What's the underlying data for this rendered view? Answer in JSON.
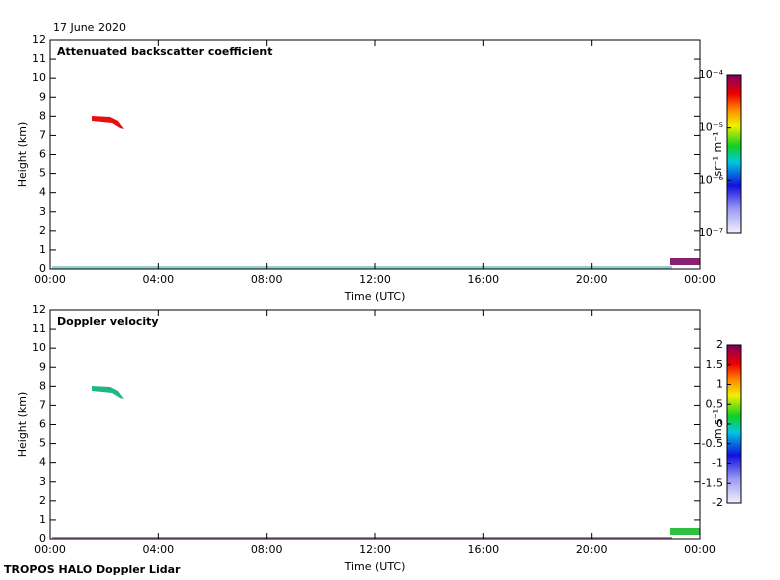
{
  "date": "17 June 2020",
  "footer": "TROPOS HALO Doppler Lidar",
  "chart_data": [
    {
      "type": "heatmap",
      "title": "Attenuated backscatter coefficient",
      "x_label": "Time (UTC)",
      "y_label": "Height (km)",
      "xlim": [
        0,
        24
      ],
      "xticks": [
        {
          "value": 0,
          "label": "00:00"
        },
        {
          "value": 4,
          "label": "04:00"
        },
        {
          "value": 8,
          "label": "08:00"
        },
        {
          "value": 12,
          "label": "12:00"
        },
        {
          "value": 16,
          "label": "16:00"
        },
        {
          "value": 20,
          "label": "20:00"
        },
        {
          "value": 24,
          "label": "00:00"
        }
      ],
      "ylim": [
        0,
        12
      ],
      "yticks": [
        0,
        1,
        2,
        3,
        4,
        5,
        6,
        7,
        8,
        9,
        10,
        11,
        12
      ],
      "colorbar_label": "sr⁻¹ m⁻¹",
      "colorbar_scale": "log",
      "colorbar_lim": [
        1e-07,
        0.0001
      ],
      "colorbar_ticks": [
        {
          "value": 1e-07,
          "label": "10⁻⁷"
        },
        {
          "value": 1e-06,
          "label": "10⁻⁶"
        },
        {
          "value": 1e-05,
          "label": "10⁻⁵"
        },
        {
          "value": 0.0001,
          "label": "10⁻⁴"
        }
      ]
    },
    {
      "type": "heatmap",
      "title": "Doppler velocity",
      "x_label": "Time (UTC)",
      "y_label": "Height (km)",
      "xlim": [
        0,
        24
      ],
      "xticks": [
        {
          "value": 0,
          "label": "00:00"
        },
        {
          "value": 4,
          "label": "04:00"
        },
        {
          "value": 8,
          "label": "08:00"
        },
        {
          "value": 12,
          "label": "12:00"
        },
        {
          "value": 16,
          "label": "16:00"
        },
        {
          "value": 20,
          "label": "20:00"
        },
        {
          "value": 24,
          "label": "00:00"
        }
      ],
      "ylim": [
        0,
        12
      ],
      "yticks": [
        0,
        1,
        2,
        3,
        4,
        5,
        6,
        7,
        8,
        9,
        10,
        11,
        12
      ],
      "colorbar_label": "m s⁻¹",
      "colorbar_scale": "linear",
      "colorbar_lim": [
        -2,
        2
      ],
      "colorbar_ticks": [
        -2,
        -1.5,
        -1,
        -0.5,
        0,
        0.5,
        1,
        1.5,
        2
      ]
    }
  ]
}
